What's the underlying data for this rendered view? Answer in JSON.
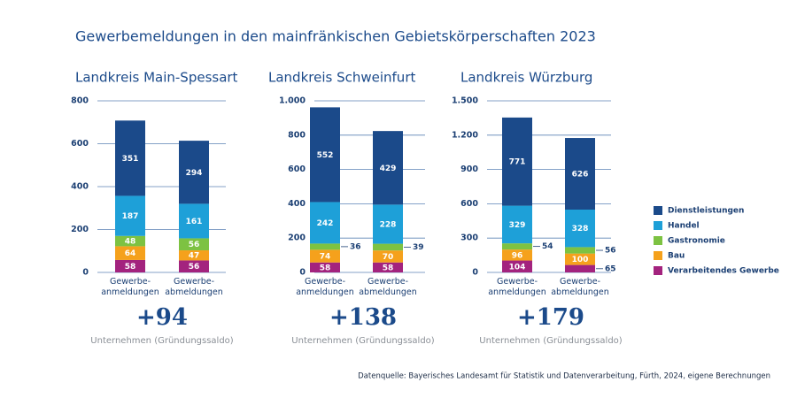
{
  "title": "Gewerbemeldungen in den mainfränkischen Gebietskörperschaften 2023",
  "source": "Datenquelle: Bayerisches Landesamt für Statistik und Datenverarbeitung, Fürth, 2024, eigene Berechnungen",
  "chart_data": [
    {
      "type": "bar",
      "stacked": true,
      "title": "Landkreis Main-Spessart",
      "categories": [
        "Gewerbe-\nanmeldungen",
        "Gewerbe-\nabmeldungen"
      ],
      "series": [
        {
          "name": "Dienstleistungen",
          "color": "#1b4a8a",
          "values": [
            351,
            294
          ]
        },
        {
          "name": "Handel",
          "color": "#1ea0d8",
          "values": [
            187,
            161
          ]
        },
        {
          "name": "Gastronomie",
          "color": "#7dc242",
          "values": [
            48,
            56
          ]
        },
        {
          "name": "Bau",
          "color": "#f5a11c",
          "values": [
            64,
            47
          ]
        },
        {
          "name": "Verarbeitendes Gewerbe",
          "color": "#a3237e",
          "values": [
            58,
            56
          ]
        }
      ],
      "ylim": [
        0,
        800
      ],
      "yticks": [
        0,
        200,
        400,
        600,
        800
      ],
      "grid": true,
      "balance": {
        "value": 94,
        "label": "+94"
      },
      "balance_caption": "Unternehmen (Gründungssaldo)"
    },
    {
      "type": "bar",
      "stacked": true,
      "title": "Landkreis Schweinfurt",
      "categories": [
        "Gewerbe-\nanmeldungen",
        "Gewerbe-\nabmeldungen"
      ],
      "series": [
        {
          "name": "Dienstleistungen",
          "color": "#1b4a8a",
          "values": [
            552,
            429
          ]
        },
        {
          "name": "Handel",
          "color": "#1ea0d8",
          "values": [
            242,
            228
          ]
        },
        {
          "name": "Gastronomie",
          "color": "#7dc242",
          "values": [
            36,
            39
          ]
        },
        {
          "name": "Bau",
          "color": "#f5a11c",
          "values": [
            74,
            70
          ]
        },
        {
          "name": "Verarbeitendes Gewerbe",
          "color": "#a3237e",
          "values": [
            58,
            58
          ]
        }
      ],
      "ylim": [
        0,
        1000
      ],
      "yticks": [
        0,
        200,
        400,
        600,
        800,
        {
          "value": 1000,
          "label": "1.000"
        }
      ],
      "grid": true,
      "balance": {
        "value": 138,
        "label": "+138"
      },
      "balance_caption": "Unternehmen (Gründungssaldo)"
    },
    {
      "type": "bar",
      "stacked": true,
      "title": "Landkreis Würzburg",
      "categories": [
        "Gewerbe-\nanmeldungen",
        "Gewerbe-\nabmeldungen"
      ],
      "series": [
        {
          "name": "Dienstleistungen",
          "color": "#1b4a8a",
          "values": [
            771,
            626
          ]
        },
        {
          "name": "Handel",
          "color": "#1ea0d8",
          "values": [
            329,
            328
          ]
        },
        {
          "name": "Gastronomie",
          "color": "#7dc242",
          "values": [
            54,
            56
          ]
        },
        {
          "name": "Bau",
          "color": "#f5a11c",
          "values": [
            96,
            100
          ]
        },
        {
          "name": "Verarbeitendes Gewerbe",
          "color": "#a3237e",
          "values": [
            104,
            65
          ]
        }
      ],
      "ylim": [
        0,
        1500
      ],
      "yticks": [
        0,
        300,
        600,
        900,
        {
          "value": 1200,
          "label": "1.200"
        },
        {
          "value": 1500,
          "label": "1.500"
        }
      ],
      "grid": true,
      "balance": {
        "value": 179,
        "label": "+179"
      },
      "balance_caption": "Unternehmen (Gründungssaldo)"
    }
  ]
}
